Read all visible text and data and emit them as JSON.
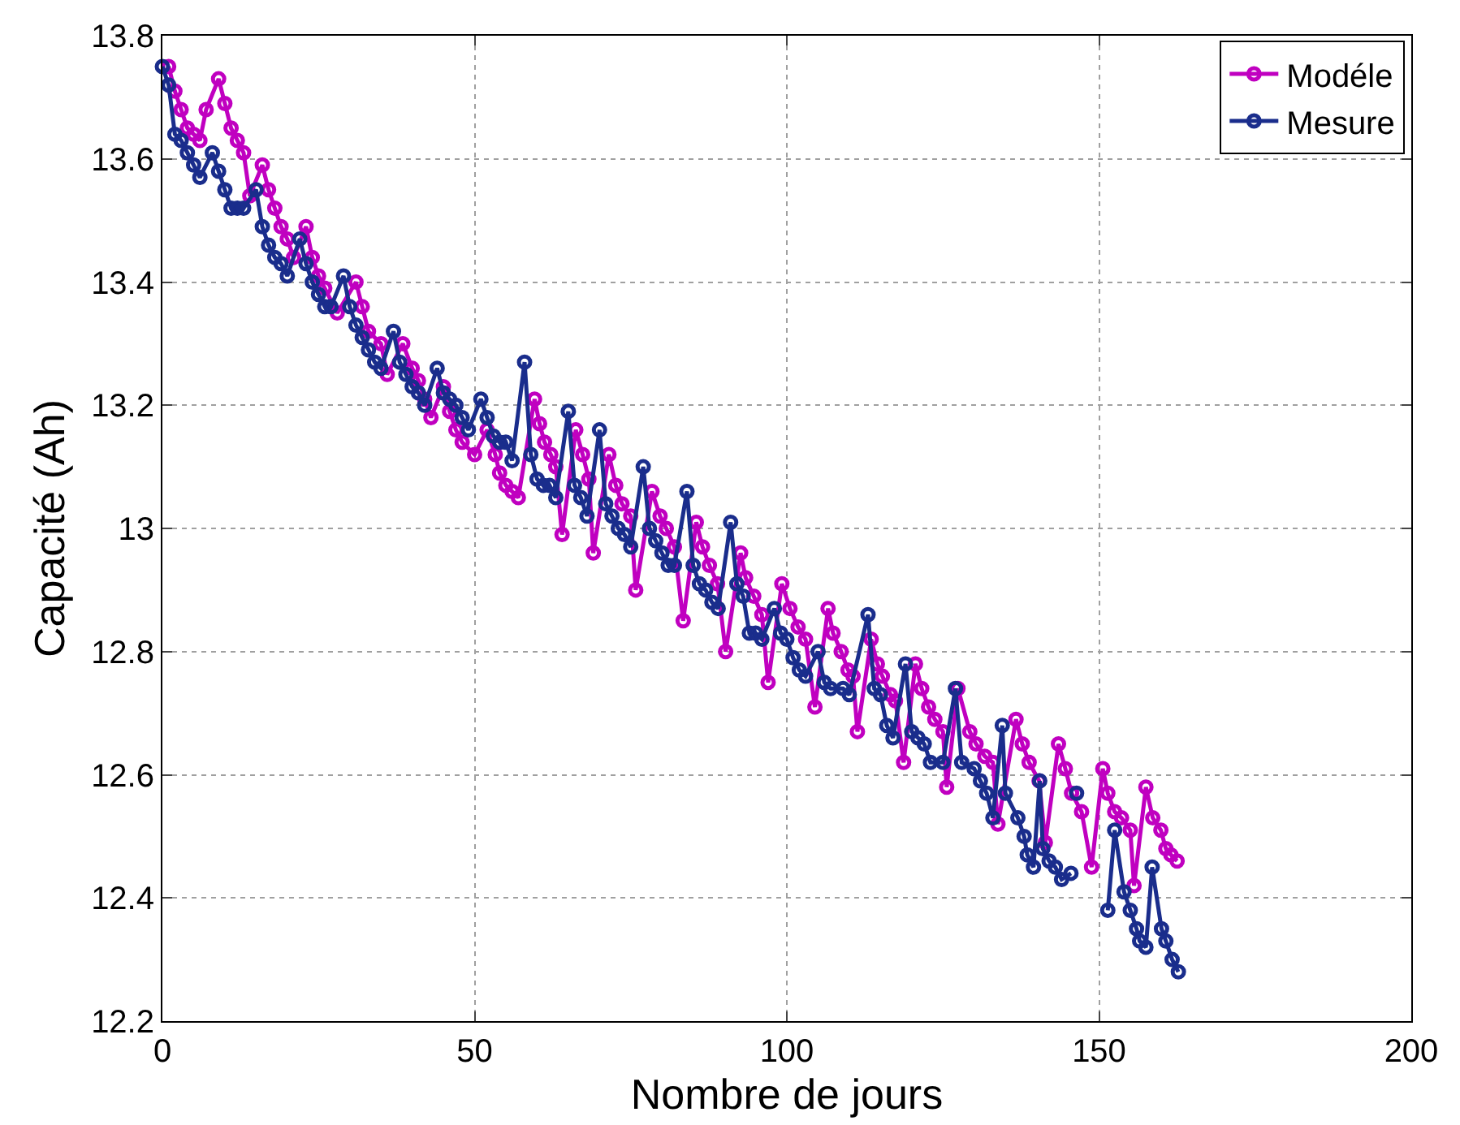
{
  "chart_data": {
    "type": "line",
    "xlabel": "Nombre de jours",
    "ylabel": "Capacité (Ah)",
    "xlim": [
      0,
      200
    ],
    "xticks": [
      0,
      50,
      100,
      150,
      200
    ],
    "ylim": [
      12.2,
      13.8
    ],
    "yticks": [
      12.2,
      12.4,
      12.6,
      12.8,
      13,
      13.2,
      13.4,
      13.6,
      13.8
    ],
    "grid": true,
    "legend": "top right",
    "marker": "circle",
    "line_style": "solid",
    "series": [
      {
        "name": "Modéle",
        "color": "#c000c0",
        "x": [
          1,
          2,
          3,
          4,
          5,
          6,
          7,
          9,
          10,
          11,
          12,
          13,
          14,
          16,
          17,
          18,
          19,
          20,
          21,
          23,
          24,
          25,
          26,
          28,
          31,
          32,
          33,
          35,
          36,
          38.5,
          40,
          41,
          42,
          43,
          45,
          46,
          47,
          48,
          50,
          52,
          53.3,
          54,
          55,
          56,
          57,
          59.6,
          60.4,
          61.2,
          62.2,
          63,
          64,
          66.2,
          67.3,
          68.3,
          69,
          71.5,
          72.6,
          73.6,
          75,
          75.8,
          78.4,
          79.7,
          80.7,
          82,
          83.4,
          85.5,
          86.5,
          87.6,
          88.9,
          90.2,
          92.6,
          93.4,
          94.7,
          96,
          97,
          99.2,
          100.5,
          101.8,
          103,
          104.5,
          106.6,
          107.4,
          108.7,
          109.8,
          110.6,
          111.3,
          113.5,
          114.5,
          115.3,
          116.6,
          117.4,
          118.7,
          120.6,
          121.6,
          122.7,
          123.7,
          125,
          125.6,
          127.4,
          129.3,
          130.3,
          131.7,
          133,
          133.8,
          136.7,
          137.7,
          138.8,
          140.4,
          141.4,
          143.5,
          144.6,
          145.6,
          147.2,
          148.8,
          150.6,
          151.4,
          152.5,
          153.6,
          155,
          155.6,
          157.5,
          158.6,
          159.9,
          160.7,
          161.5,
          162.5
        ],
        "values": [
          13.75,
          13.71,
          13.68,
          13.65,
          13.64,
          13.63,
          13.68,
          13.73,
          13.69,
          13.65,
          13.63,
          13.61,
          13.54,
          13.59,
          13.55,
          13.52,
          13.49,
          13.47,
          13.44,
          13.49,
          13.44,
          13.41,
          13.39,
          13.35,
          13.4,
          13.36,
          13.32,
          13.3,
          13.25,
          13.3,
          13.26,
          13.24,
          13.21,
          13.18,
          13.23,
          13.19,
          13.16,
          13.14,
          13.12,
          13.16,
          13.12,
          13.09,
          13.07,
          13.06,
          13.05,
          13.21,
          13.17,
          13.14,
          13.12,
          13.1,
          12.99,
          13.16,
          13.12,
          13.08,
          12.96,
          13.12,
          13.07,
          13.04,
          13.02,
          12.9,
          13.06,
          13.02,
          13.0,
          12.97,
          12.85,
          13.01,
          12.97,
          12.94,
          12.91,
          12.8,
          12.96,
          12.92,
          12.89,
          12.86,
          12.75,
          12.91,
          12.87,
          12.84,
          12.82,
          12.71,
          12.87,
          12.83,
          12.8,
          12.77,
          12.76,
          12.67,
          12.82,
          12.78,
          12.76,
          12.73,
          12.72,
          12.62,
          12.78,
          12.74,
          12.71,
          12.69,
          12.67,
          12.58,
          12.74,
          12.67,
          12.65,
          12.63,
          12.62,
          12.52,
          12.69,
          12.65,
          12.62,
          12.59,
          12.49,
          12.65,
          12.61,
          12.57,
          12.54,
          12.45,
          12.61,
          12.57,
          12.54,
          12.53,
          12.51,
          12.42,
          12.58,
          12.53,
          12.51,
          12.48,
          12.47,
          12.46
        ]
      },
      {
        "name": "Mesure",
        "color": "#1a2d8c",
        "x": [
          0,
          1,
          2,
          3,
          4,
          5,
          6,
          8,
          9,
          10,
          11,
          12,
          13,
          15,
          16,
          17,
          18,
          19,
          20,
          22,
          23,
          24,
          25,
          26,
          27,
          29,
          30,
          31,
          32,
          33,
          34,
          35,
          37,
          38,
          39,
          40,
          41,
          42,
          44,
          45,
          46,
          47,
          48,
          49,
          51,
          52,
          53,
          54,
          55,
          56,
          58,
          59,
          60,
          61,
          62,
          63,
          65,
          66,
          67,
          68,
          70,
          71,
          72,
          73,
          74,
          75,
          77,
          78,
          79,
          80,
          81,
          82,
          84,
          85,
          86,
          87,
          88,
          89,
          91,
          92,
          93,
          94,
          95,
          96,
          98,
          99,
          100,
          101,
          102,
          103,
          105,
          106,
          107,
          109,
          110,
          113,
          114,
          115,
          116,
          117,
          119,
          120,
          121,
          122,
          123,
          125,
          127,
          128,
          130,
          131,
          132,
          133,
          134.5,
          135,
          137,
          138,
          138.5,
          139.5,
          140.5,
          141,
          142,
          143,
          144,
          145.5,
          null,
          146.4,
          null,
          151.4,
          152.5,
          154,
          155,
          156,
          156.5,
          157.5,
          158.5,
          160,
          160.7,
          161.7,
          162.7
        ],
        "values": [
          13.75,
          13.72,
          13.64,
          13.63,
          13.61,
          13.59,
          13.57,
          13.61,
          13.58,
          13.55,
          13.52,
          13.52,
          13.52,
          13.55,
          13.49,
          13.46,
          13.44,
          13.43,
          13.41,
          13.47,
          13.43,
          13.4,
          13.38,
          13.36,
          13.36,
          13.41,
          13.36,
          13.33,
          13.31,
          13.29,
          13.27,
          13.26,
          13.32,
          13.27,
          13.25,
          13.23,
          13.22,
          13.2,
          13.26,
          13.22,
          13.21,
          13.2,
          13.18,
          13.16,
          13.21,
          13.18,
          13.15,
          13.14,
          13.14,
          13.11,
          13.27,
          13.12,
          13.08,
          13.07,
          13.07,
          13.05,
          13.19,
          13.07,
          13.05,
          13.02,
          13.16,
          13.04,
          13.02,
          13.0,
          12.99,
          12.97,
          13.1,
          13.0,
          12.98,
          12.96,
          12.94,
          12.94,
          13.06,
          12.94,
          12.91,
          12.9,
          12.88,
          12.87,
          13.01,
          12.91,
          12.89,
          12.83,
          12.83,
          12.82,
          12.87,
          12.83,
          12.82,
          12.79,
          12.77,
          12.76,
          12.8,
          12.75,
          12.74,
          12.74,
          12.73,
          12.86,
          12.74,
          12.73,
          12.68,
          12.66,
          12.78,
          12.67,
          12.66,
          12.65,
          12.62,
          12.62,
          12.74,
          12.62,
          12.61,
          12.59,
          12.57,
          12.53,
          12.68,
          12.57,
          12.53,
          12.5,
          12.47,
          12.45,
          12.59,
          12.48,
          12.46,
          12.45,
          12.43,
          12.44,
          null,
          12.57,
          null,
          12.38,
          12.51,
          12.41,
          12.38,
          12.35,
          12.33,
          12.32,
          12.45,
          12.35,
          12.33,
          12.3,
          12.28
        ]
      }
    ]
  }
}
